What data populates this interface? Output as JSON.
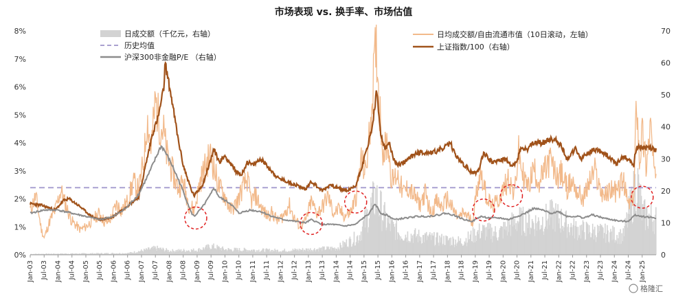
{
  "chart_data": {
    "type": "line",
    "title": "市场表现 vs. 换手率、市场估值",
    "legend": [
      {
        "id": "volume",
        "label": "日成交额（千亿元，右轴）",
        "color": "#d3d3d3",
        "kind": "bar"
      },
      {
        "id": "hist",
        "label": "历史均值",
        "color": "#a9a0d0",
        "kind": "dash"
      },
      {
        "id": "pe",
        "label": "沪深300非金融P/E （右轴）",
        "color": "#8c8c8c",
        "kind": "line"
      },
      {
        "id": "turnover",
        "label": "日均成交额/自由流通市值（10日滚动，左轴）",
        "color": "#f2b98a",
        "kind": "line"
      },
      {
        "id": "index",
        "label": "上证指数/100（右轴）",
        "color": "#a0521a",
        "kind": "line"
      }
    ],
    "y_left": {
      "min": 0,
      "max": 8,
      "ticks": [
        "0%",
        "1%",
        "2%",
        "3%",
        "4%",
        "5%",
        "6%",
        "7%",
        "8%"
      ]
    },
    "y_right": {
      "min": 0,
      "max": 70,
      "ticks": [
        "0",
        "10",
        "20",
        "30",
        "40",
        "50",
        "60",
        "70"
      ]
    },
    "x_start": 2003.0,
    "x_end": 2025.5,
    "x_labels": [
      "Jan-03",
      "Jul-03",
      "Jan-04",
      "Jul-04",
      "Jan-05",
      "Jul-05",
      "Jan-06",
      "Jul-06",
      "Jan-07",
      "Jul-07",
      "Jan-08",
      "Jul-08",
      "Jan-09",
      "Jul-09",
      "Jan-10",
      "Jul-10",
      "Jan-11",
      "Jul-11",
      "Jan-12",
      "Jul-12",
      "Jan-13",
      "Jul-13",
      "Jan-14",
      "Jul-14",
      "Jan-15",
      "Jul-15",
      "Jan-16",
      "Jul-16",
      "Jan-17",
      "Jul-17",
      "Jan-18",
      "Jul-18",
      "Jan-19",
      "Jul-19",
      "Jan-20",
      "Jul-20",
      "Jan-21",
      "Jul-21",
      "Jan-22",
      "Jul-22",
      "Jan-23",
      "Jul-23",
      "Jan-24",
      "Jul-24",
      "Jan-25"
    ],
    "hist_avg_pct": 2.4,
    "series": {
      "index": [
        [
          2003.0,
          16
        ],
        [
          2003.4,
          15.5
        ],
        [
          2003.9,
          14
        ],
        [
          2004.2,
          17
        ],
        [
          2004.4,
          17.5
        ],
        [
          2004.8,
          15
        ],
        [
          2005.2,
          12
        ],
        [
          2005.5,
          11
        ],
        [
          2005.9,
          11.5
        ],
        [
          2006.3,
          14
        ],
        [
          2006.6,
          16
        ],
        [
          2006.9,
          18
        ],
        [
          2007.1,
          26
        ],
        [
          2007.4,
          38
        ],
        [
          2007.6,
          43
        ],
        [
          2007.8,
          52
        ],
        [
          2007.85,
          60
        ],
        [
          2008.1,
          48
        ],
        [
          2008.3,
          37
        ],
        [
          2008.5,
          28
        ],
        [
          2008.8,
          20
        ],
        [
          2008.9,
          18.5
        ],
        [
          2009.2,
          22
        ],
        [
          2009.5,
          30
        ],
        [
          2009.6,
          33
        ],
        [
          2009.8,
          29
        ],
        [
          2010.0,
          31
        ],
        [
          2010.4,
          26
        ],
        [
          2010.6,
          25
        ],
        [
          2010.8,
          29
        ],
        [
          2011.0,
          28
        ],
        [
          2011.3,
          30
        ],
        [
          2011.6,
          27
        ],
        [
          2011.9,
          24
        ],
        [
          2012.2,
          23
        ],
        [
          2012.5,
          22
        ],
        [
          2012.9,
          20.5
        ],
        [
          2013.1,
          23
        ],
        [
          2013.5,
          20
        ],
        [
          2013.8,
          22
        ],
        [
          2014.0,
          21
        ],
        [
          2014.4,
          20
        ],
        [
          2014.7,
          21.5
        ],
        [
          2014.9,
          27
        ],
        [
          2015.1,
          33
        ],
        [
          2015.3,
          40
        ],
        [
          2015.45,
          51
        ],
        [
          2015.6,
          38
        ],
        [
          2015.75,
          33
        ],
        [
          2015.9,
          35
        ],
        [
          2016.1,
          29
        ],
        [
          2016.3,
          28
        ],
        [
          2016.6,
          30
        ],
        [
          2016.9,
          32
        ],
        [
          2017.2,
          32
        ],
        [
          2017.5,
          32
        ],
        [
          2017.9,
          33.5
        ],
        [
          2018.1,
          35
        ],
        [
          2018.3,
          31
        ],
        [
          2018.6,
          28
        ],
        [
          2018.9,
          25.5
        ],
        [
          2019.1,
          26
        ],
        [
          2019.3,
          32
        ],
        [
          2019.6,
          29
        ],
        [
          2019.9,
          29.5
        ],
        [
          2020.1,
          30
        ],
        [
          2020.3,
          27.5
        ],
        [
          2020.5,
          29
        ],
        [
          2020.6,
          33
        ],
        [
          2020.9,
          33
        ],
        [
          2021.1,
          35
        ],
        [
          2021.4,
          35
        ],
        [
          2021.7,
          36
        ],
        [
          2021.9,
          36
        ],
        [
          2022.1,
          34
        ],
        [
          2022.3,
          30
        ],
        [
          2022.6,
          33
        ],
        [
          2022.8,
          30
        ],
        [
          2023.0,
          31.5
        ],
        [
          2023.3,
          33
        ],
        [
          2023.6,
          32
        ],
        [
          2023.9,
          30
        ],
        [
          2024.1,
          28.5
        ],
        [
          2024.3,
          31
        ],
        [
          2024.6,
          29
        ],
        [
          2024.7,
          28
        ],
        [
          2024.75,
          32
        ],
        [
          2024.85,
          34
        ],
        [
          2025.0,
          33.5
        ],
        [
          2025.3,
          33.5
        ],
        [
          2025.5,
          32.5
        ]
      ],
      "pe": [
        [
          2003.0,
          13
        ],
        [
          2003.5,
          14
        ],
        [
          2004.0,
          14
        ],
        [
          2004.5,
          13
        ],
        [
          2005.0,
          12
        ],
        [
          2005.5,
          11
        ],
        [
          2006.0,
          12
        ],
        [
          2006.5,
          15
        ],
        [
          2006.9,
          19
        ],
        [
          2007.3,
          26
        ],
        [
          2007.7,
          34
        ],
        [
          2007.8,
          33
        ],
        [
          2008.1,
          28
        ],
        [
          2008.4,
          22
        ],
        [
          2008.8,
          13
        ],
        [
          2008.9,
          12
        ],
        [
          2009.2,
          15
        ],
        [
          2009.5,
          19
        ],
        [
          2009.6,
          21
        ],
        [
          2009.8,
          18
        ],
        [
          2010.2,
          16
        ],
        [
          2010.5,
          13
        ],
        [
          2010.9,
          14
        ],
        [
          2011.3,
          13.5
        ],
        [
          2011.7,
          12
        ],
        [
          2012.1,
          11
        ],
        [
          2012.5,
          10.5
        ],
        [
          2012.9,
          10
        ],
        [
          2013.1,
          11
        ],
        [
          2013.5,
          9.5
        ],
        [
          2013.9,
          9.5
        ],
        [
          2014.3,
          9
        ],
        [
          2014.7,
          9.5
        ],
        [
          2014.9,
          11
        ],
        [
          2015.2,
          13
        ],
        [
          2015.4,
          16
        ],
        [
          2015.6,
          13
        ],
        [
          2015.8,
          12.5
        ],
        [
          2016.1,
          11
        ],
        [
          2016.5,
          11.5
        ],
        [
          2016.9,
          12
        ],
        [
          2017.3,
          12
        ],
        [
          2017.7,
          12.5
        ],
        [
          2017.9,
          13
        ],
        [
          2018.2,
          12.5
        ],
        [
          2018.6,
          11
        ],
        [
          2018.9,
          10.5
        ],
        [
          2019.2,
          12
        ],
        [
          2019.5,
          11.5
        ],
        [
          2019.9,
          11.5
        ],
        [
          2020.2,
          11
        ],
        [
          2020.5,
          12
        ],
        [
          2020.8,
          13
        ],
        [
          2021.1,
          14.5
        ],
        [
          2021.4,
          14
        ],
        [
          2021.7,
          13
        ],
        [
          2022.0,
          13.5
        ],
        [
          2022.3,
          12
        ],
        [
          2022.7,
          12
        ],
        [
          2022.9,
          11.5
        ],
        [
          2023.2,
          12.5
        ],
        [
          2023.6,
          11.5
        ],
        [
          2023.9,
          11
        ],
        [
          2024.2,
          10.5
        ],
        [
          2024.5,
          10.5
        ],
        [
          2024.75,
          12.5
        ],
        [
          2025.0,
          12
        ],
        [
          2025.5,
          11.5
        ]
      ],
      "turnover": [
        [
          2003.0,
          1.6
        ],
        [
          2003.2,
          2.1
        ],
        [
          2003.4,
          0.9
        ],
        [
          2003.5,
          0.6
        ],
        [
          2003.7,
          1.2
        ],
        [
          2003.9,
          1.6
        ],
        [
          2004.1,
          2.3
        ],
        [
          2004.3,
          1.7
        ],
        [
          2004.5,
          1.2
        ],
        [
          2004.8,
          0.9
        ],
        [
          2005.0,
          1.0
        ],
        [
          2005.3,
          1.3
        ],
        [
          2005.5,
          1.5
        ],
        [
          2005.7,
          1.1
        ],
        [
          2005.9,
          1.3
        ],
        [
          2006.1,
          1.8
        ],
        [
          2006.3,
          1.6
        ],
        [
          2006.5,
          1.9
        ],
        [
          2006.7,
          2.6
        ],
        [
          2006.9,
          2.3
        ],
        [
          2007.1,
          3.5
        ],
        [
          2007.2,
          4.9
        ],
        [
          2007.35,
          3.8
        ],
        [
          2007.5,
          5.5
        ],
        [
          2007.65,
          4.7
        ],
        [
          2007.8,
          4.4
        ],
        [
          2007.9,
          3.6
        ],
        [
          2008.1,
          3.0
        ],
        [
          2008.3,
          2.4
        ],
        [
          2008.5,
          2.6
        ],
        [
          2008.7,
          1.8
        ],
        [
          2008.9,
          1.6
        ],
        [
          2009.1,
          2.6
        ],
        [
          2009.3,
          3.2
        ],
        [
          2009.5,
          3.6
        ],
        [
          2009.65,
          2.9
        ],
        [
          2009.8,
          2.4
        ],
        [
          2010.0,
          2.1
        ],
        [
          2010.2,
          1.6
        ],
        [
          2010.4,
          1.8
        ],
        [
          2010.6,
          2.3
        ],
        [
          2010.8,
          2.7
        ],
        [
          2010.95,
          1.9
        ],
        [
          2011.1,
          2.1
        ],
        [
          2011.3,
          1.7
        ],
        [
          2011.5,
          1.4
        ],
        [
          2011.7,
          1.5
        ],
        [
          2011.9,
          1.2
        ],
        [
          2012.1,
          1.4
        ],
        [
          2012.3,
          1.8
        ],
        [
          2012.5,
          1.3
        ],
        [
          2012.7,
          1.0
        ],
        [
          2012.9,
          1.2
        ],
        [
          2013.1,
          1.9
        ],
        [
          2013.3,
          1.5
        ],
        [
          2013.5,
          1.7
        ],
        [
          2013.7,
          2.1
        ],
        [
          2013.9,
          1.5
        ],
        [
          2014.1,
          1.6
        ],
        [
          2014.3,
          1.4
        ],
        [
          2014.5,
          1.5
        ],
        [
          2014.7,
          2.0
        ],
        [
          2014.9,
          3.4
        ],
        [
          2015.05,
          2.9
        ],
        [
          2015.2,
          4.3
        ],
        [
          2015.35,
          6.4
        ],
        [
          2015.45,
          7.5
        ],
        [
          2015.55,
          5.4
        ],
        [
          2015.7,
          3.6
        ],
        [
          2015.85,
          4.1
        ],
        [
          2016.0,
          2.6
        ],
        [
          2016.2,
          2.9
        ],
        [
          2016.4,
          2.2
        ],
        [
          2016.6,
          2.4
        ],
        [
          2016.8,
          2.1
        ],
        [
          2017.0,
          1.8
        ],
        [
          2017.2,
          2.2
        ],
        [
          2017.4,
          1.5
        ],
        [
          2017.6,
          1.9
        ],
        [
          2017.8,
          1.7
        ],
        [
          2018.0,
          2.0
        ],
        [
          2018.2,
          1.6
        ],
        [
          2018.4,
          1.3
        ],
        [
          2018.6,
          1.5
        ],
        [
          2018.9,
          1.2
        ],
        [
          2019.1,
          2.6
        ],
        [
          2019.2,
          3.0
        ],
        [
          2019.4,
          2.1
        ],
        [
          2019.6,
          1.7
        ],
        [
          2019.8,
          1.9
        ],
        [
          2020.0,
          2.3
        ],
        [
          2020.2,
          2.8
        ],
        [
          2020.4,
          2.1
        ],
        [
          2020.55,
          3.7
        ],
        [
          2020.7,
          2.9
        ],
        [
          2020.9,
          2.4
        ],
        [
          2021.1,
          3.1
        ],
        [
          2021.3,
          2.6
        ],
        [
          2021.5,
          3.0
        ],
        [
          2021.7,
          3.4
        ],
        [
          2021.9,
          2.8
        ],
        [
          2022.1,
          2.9
        ],
        [
          2022.3,
          2.4
        ],
        [
          2022.5,
          2.6
        ],
        [
          2022.7,
          2.2
        ],
        [
          2022.9,
          2.0
        ],
        [
          2023.1,
          2.6
        ],
        [
          2023.3,
          3.0
        ],
        [
          2023.5,
          2.3
        ],
        [
          2023.7,
          2.1
        ],
        [
          2023.9,
          2.4
        ],
        [
          2024.1,
          2.2
        ],
        [
          2024.3,
          2.7
        ],
        [
          2024.5,
          1.8
        ],
        [
          2024.7,
          2.0
        ],
        [
          2024.8,
          5.8
        ],
        [
          2024.9,
          3.4
        ],
        [
          2025.0,
          4.4
        ],
        [
          2025.15,
          3.2
        ],
        [
          2025.3,
          4.7
        ],
        [
          2025.45,
          2.6
        ],
        [
          2025.5,
          3.1
        ]
      ],
      "volume_bands": [
        [
          2003.0,
          0.3
        ],
        [
          2006.5,
          0.6
        ],
        [
          2007.5,
          2.5
        ],
        [
          2008.0,
          1.5
        ],
        [
          2009.0,
          1.8
        ],
        [
          2009.5,
          3.2
        ],
        [
          2010.0,
          2.0
        ],
        [
          2012.0,
          1.6
        ],
        [
          2013.0,
          2.0
        ],
        [
          2014.0,
          2.5
        ],
        [
          2014.8,
          7
        ],
        [
          2015.4,
          22
        ],
        [
          2015.8,
          12
        ],
        [
          2016.3,
          8
        ],
        [
          2017.5,
          6
        ],
        [
          2018.5,
          5
        ],
        [
          2019.2,
          9
        ],
        [
          2019.8,
          8
        ],
        [
          2020.5,
          13
        ],
        [
          2021.2,
          12
        ],
        [
          2021.8,
          15
        ],
        [
          2022.5,
          10
        ],
        [
          2023.0,
          9
        ],
        [
          2023.8,
          8
        ],
        [
          2024.3,
          7
        ],
        [
          2024.8,
          28
        ],
        [
          2025.0,
          15
        ],
        [
          2025.5,
          14
        ]
      ]
    },
    "circles": [
      [
        2008.95,
        11.5
      ],
      [
        2013.1,
        9.8
      ],
      [
        2014.7,
        16.5
      ],
      [
        2019.3,
        14.0
      ],
      [
        2020.3,
        18.5
      ],
      [
        2025.0,
        18.0
      ]
    ]
  },
  "watermark": "格隆汇"
}
